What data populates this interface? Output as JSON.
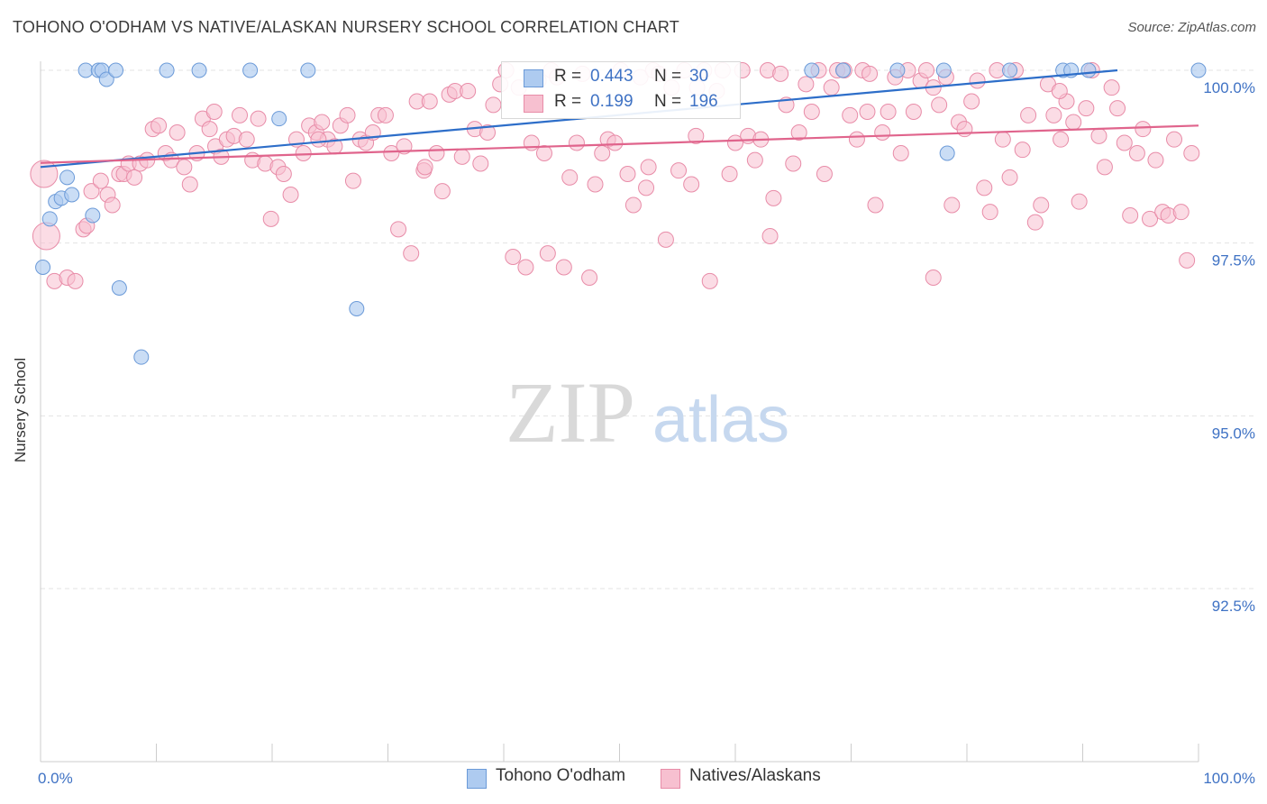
{
  "title": "TOHONO O'ODHAM VS NATIVE/ALASKAN NURSERY SCHOOL CORRELATION CHART",
  "source": "Source: ZipAtlas.com",
  "watermark": {
    "zip": "ZIP",
    "atlas": "atlas"
  },
  "legend": {
    "s1": {
      "r_label": "R =",
      "r_value": "0.443",
      "n_label": "N =",
      "n_value": "30"
    },
    "s2": {
      "r_label": "R =",
      "r_value": "0.199",
      "n_label": "N =",
      "n_value": "196"
    }
  },
  "bottom_legend": {
    "s1": "Tohono O'odham",
    "s2": "Natives/Alaskans"
  },
  "colors": {
    "s1_fill": "#aecbf0",
    "s1_stroke": "#6b9ad8",
    "s1_line": "#2d6ec9",
    "s2_fill": "#f7c0d0",
    "s2_stroke": "#e88ca8",
    "s2_line": "#e0648c",
    "accent_text": "#3f72c4"
  },
  "chart_data": {
    "type": "scatter",
    "title": "TOHONO O'ODHAM VS NATIVE/ALASKAN NURSERY SCHOOL CORRELATION CHART",
    "xlabel": "",
    "ylabel": "Nursery School",
    "xlim": [
      0,
      100
    ],
    "ylim": [
      90.0,
      100.5
    ],
    "x_tick_labels": [
      "0.0%",
      "100.0%"
    ],
    "y_ticks": [
      92.5,
      95.0,
      97.5,
      100.0
    ],
    "y_tick_labels": [
      "92.5%",
      "95.0%",
      "97.5%",
      "100.0%"
    ],
    "grid": true,
    "series": [
      {
        "name": "Tohono O'odham",
        "color": "#6b9ad8",
        "trend": [
          [
            0,
            98.6
          ],
          [
            93,
            100.0
          ]
        ],
        "points": [
          [
            3.9,
            100.0
          ],
          [
            5.0,
            100.0
          ],
          [
            5.3,
            100.0
          ],
          [
            5.7,
            99.87
          ],
          [
            6.5,
            100.0
          ],
          [
            10.9,
            100.0
          ],
          [
            13.7,
            100.0
          ],
          [
            18.1,
            100.0
          ],
          [
            20.6,
            99.3
          ],
          [
            23.1,
            100.0
          ],
          [
            0.2,
            97.15
          ],
          [
            0.8,
            97.85
          ],
          [
            1.3,
            98.1
          ],
          [
            1.8,
            98.15
          ],
          [
            2.3,
            98.45
          ],
          [
            2.7,
            98.2
          ],
          [
            4.5,
            97.9
          ],
          [
            6.8,
            96.85
          ],
          [
            8.7,
            95.85
          ],
          [
            27.3,
            96.55
          ],
          [
            66.6,
            100.0
          ],
          [
            69.3,
            100.0
          ],
          [
            74.0,
            100.0
          ],
          [
            78.0,
            100.0
          ],
          [
            83.7,
            100.0
          ],
          [
            88.3,
            100.0
          ],
          [
            89.0,
            100.0
          ],
          [
            90.5,
            100.0
          ],
          [
            100.0,
            100.0
          ],
          [
            78.3,
            98.8
          ]
        ]
      },
      {
        "name": "Natives/Alaskans",
        "color": "#e88ca8",
        "trend": [
          [
            0,
            98.66
          ],
          [
            100,
            99.2
          ]
        ],
        "points": [
          [
            0.3,
            98.5
          ],
          [
            0.5,
            97.6
          ],
          [
            1.2,
            96.95
          ],
          [
            2.3,
            97.0
          ],
          [
            3.0,
            96.95
          ],
          [
            3.7,
            97.7
          ],
          [
            4.0,
            97.75
          ],
          [
            4.4,
            98.25
          ],
          [
            5.2,
            98.4
          ],
          [
            5.8,
            98.2
          ],
          [
            6.2,
            98.05
          ],
          [
            6.8,
            98.5
          ],
          [
            7.2,
            98.5
          ],
          [
            7.6,
            98.65
          ],
          [
            8.1,
            98.45
          ],
          [
            8.6,
            98.65
          ],
          [
            9.2,
            98.7
          ],
          [
            9.7,
            99.15
          ],
          [
            10.2,
            99.2
          ],
          [
            10.8,
            98.8
          ],
          [
            11.3,
            98.7
          ],
          [
            11.8,
            99.1
          ],
          [
            12.4,
            98.6
          ],
          [
            12.9,
            98.35
          ],
          [
            13.5,
            98.8
          ],
          [
            14.0,
            99.3
          ],
          [
            14.6,
            99.15
          ],
          [
            15.1,
            98.9
          ],
          [
            15.6,
            98.75
          ],
          [
            16.1,
            99.0
          ],
          [
            16.7,
            99.05
          ],
          [
            17.2,
            99.35
          ],
          [
            17.8,
            99.0
          ],
          [
            18.3,
            98.7
          ],
          [
            18.8,
            99.3
          ],
          [
            19.4,
            98.65
          ],
          [
            19.9,
            97.85
          ],
          [
            20.5,
            98.6
          ],
          [
            21.0,
            98.5
          ],
          [
            21.6,
            98.2
          ],
          [
            22.1,
            99.0
          ],
          [
            22.7,
            98.8
          ],
          [
            23.2,
            99.2
          ],
          [
            23.8,
            99.1
          ],
          [
            24.3,
            99.25
          ],
          [
            24.8,
            99.0
          ],
          [
            25.4,
            98.9
          ],
          [
            25.9,
            99.2
          ],
          [
            26.5,
            99.35
          ],
          [
            27.0,
            98.4
          ],
          [
            27.6,
            99.0
          ],
          [
            28.1,
            98.95
          ],
          [
            28.7,
            99.1
          ],
          [
            29.2,
            99.35
          ],
          [
            29.8,
            99.35
          ],
          [
            30.3,
            98.8
          ],
          [
            30.9,
            97.7
          ],
          [
            31.4,
            98.9
          ],
          [
            32.0,
            97.35
          ],
          [
            32.5,
            99.55
          ],
          [
            33.1,
            98.55
          ],
          [
            33.6,
            99.55
          ],
          [
            34.2,
            98.8
          ],
          [
            34.7,
            98.25
          ],
          [
            35.3,
            99.65
          ],
          [
            35.8,
            99.7
          ],
          [
            36.4,
            98.75
          ],
          [
            36.9,
            99.7
          ],
          [
            37.5,
            99.15
          ],
          [
            38.0,
            98.65
          ],
          [
            38.6,
            99.1
          ],
          [
            39.1,
            99.5
          ],
          [
            39.7,
            99.8
          ],
          [
            40.2,
            100.0
          ],
          [
            40.8,
            97.3
          ],
          [
            41.3,
            99.75
          ],
          [
            41.9,
            97.15
          ],
          [
            42.4,
            98.95
          ],
          [
            43.0,
            99.85
          ],
          [
            43.5,
            98.8
          ],
          [
            44.1,
            100.0
          ],
          [
            44.6,
            99.9
          ],
          [
            45.2,
            97.15
          ],
          [
            45.7,
            98.45
          ],
          [
            46.3,
            98.95
          ],
          [
            46.8,
            99.95
          ],
          [
            47.4,
            97.0
          ],
          [
            47.9,
            98.35
          ],
          [
            48.5,
            98.8
          ],
          [
            49.0,
            99.0
          ],
          [
            49.6,
            98.95
          ],
          [
            50.1,
            100.0
          ],
          [
            50.7,
            98.5
          ],
          [
            51.2,
            98.05
          ],
          [
            51.8,
            99.9
          ],
          [
            52.3,
            98.3
          ],
          [
            52.9,
            100.0
          ],
          [
            53.4,
            99.95
          ],
          [
            54.0,
            97.55
          ],
          [
            54.5,
            99.75
          ],
          [
            55.1,
            98.55
          ],
          [
            55.6,
            100.0
          ],
          [
            56.2,
            98.35
          ],
          [
            56.7,
            99.75
          ],
          [
            57.3,
            100.0
          ],
          [
            57.8,
            96.95
          ],
          [
            58.4,
            99.7
          ],
          [
            58.9,
            100.0
          ],
          [
            59.5,
            98.5
          ],
          [
            60.0,
            98.95
          ],
          [
            60.6,
            100.0
          ],
          [
            61.1,
            99.05
          ],
          [
            61.7,
            98.7
          ],
          [
            62.2,
            99.0
          ],
          [
            62.8,
            100.0
          ],
          [
            63.3,
            98.15
          ],
          [
            63.9,
            99.95
          ],
          [
            64.4,
            99.5
          ],
          [
            65.0,
            98.65
          ],
          [
            65.5,
            99.1
          ],
          [
            66.1,
            99.8
          ],
          [
            66.6,
            99.4
          ],
          [
            67.2,
            100.0
          ],
          [
            67.7,
            98.5
          ],
          [
            68.3,
            99.75
          ],
          [
            68.8,
            100.0
          ],
          [
            69.4,
            100.0
          ],
          [
            69.9,
            99.35
          ],
          [
            70.5,
            99.0
          ],
          [
            71.0,
            100.0
          ],
          [
            71.6,
            99.95
          ],
          [
            72.1,
            98.05
          ],
          [
            72.7,
            99.1
          ],
          [
            73.2,
            99.4
          ],
          [
            73.8,
            99.9
          ],
          [
            74.3,
            98.8
          ],
          [
            74.9,
            100.0
          ],
          [
            75.4,
            99.4
          ],
          [
            76.0,
            99.85
          ],
          [
            76.5,
            100.0
          ],
          [
            77.1,
            99.75
          ],
          [
            77.6,
            99.5
          ],
          [
            78.2,
            99.9
          ],
          [
            78.7,
            98.05
          ],
          [
            79.3,
            99.25
          ],
          [
            79.8,
            99.15
          ],
          [
            80.4,
            99.55
          ],
          [
            80.9,
            99.85
          ],
          [
            81.5,
            98.3
          ],
          [
            82.0,
            97.95
          ],
          [
            82.6,
            100.0
          ],
          [
            83.1,
            99.0
          ],
          [
            83.7,
            98.45
          ],
          [
            84.2,
            100.0
          ],
          [
            84.8,
            98.85
          ],
          [
            85.3,
            99.35
          ],
          [
            85.9,
            97.8
          ],
          [
            86.4,
            98.05
          ],
          [
            87.0,
            99.8
          ],
          [
            87.5,
            99.35
          ],
          [
            88.1,
            99.0
          ],
          [
            88.6,
            99.55
          ],
          [
            89.2,
            99.25
          ],
          [
            89.7,
            98.1
          ],
          [
            90.3,
            99.45
          ],
          [
            90.8,
            100.0
          ],
          [
            91.4,
            99.05
          ],
          [
            91.9,
            98.6
          ],
          [
            92.5,
            99.75
          ],
          [
            93.0,
            99.45
          ],
          [
            93.6,
            98.95
          ],
          [
            94.1,
            97.9
          ],
          [
            94.7,
            98.8
          ],
          [
            95.2,
            99.15
          ],
          [
            95.8,
            97.85
          ],
          [
            96.3,
            98.7
          ],
          [
            96.9,
            97.95
          ],
          [
            97.4,
            97.9
          ],
          [
            97.9,
            99.0
          ],
          [
            98.5,
            97.95
          ],
          [
            99.0,
            97.25
          ],
          [
            99.4,
            98.8
          ],
          [
            77.1,
            97.0
          ],
          [
            63.0,
            97.6
          ],
          [
            52.5,
            98.6
          ],
          [
            43.8,
            97.35
          ],
          [
            33.2,
            98.6
          ],
          [
            24.0,
            99.0
          ],
          [
            15.0,
            99.4
          ],
          [
            56.6,
            99.05
          ],
          [
            88.0,
            99.7
          ],
          [
            71.4,
            99.4
          ]
        ]
      }
    ]
  }
}
